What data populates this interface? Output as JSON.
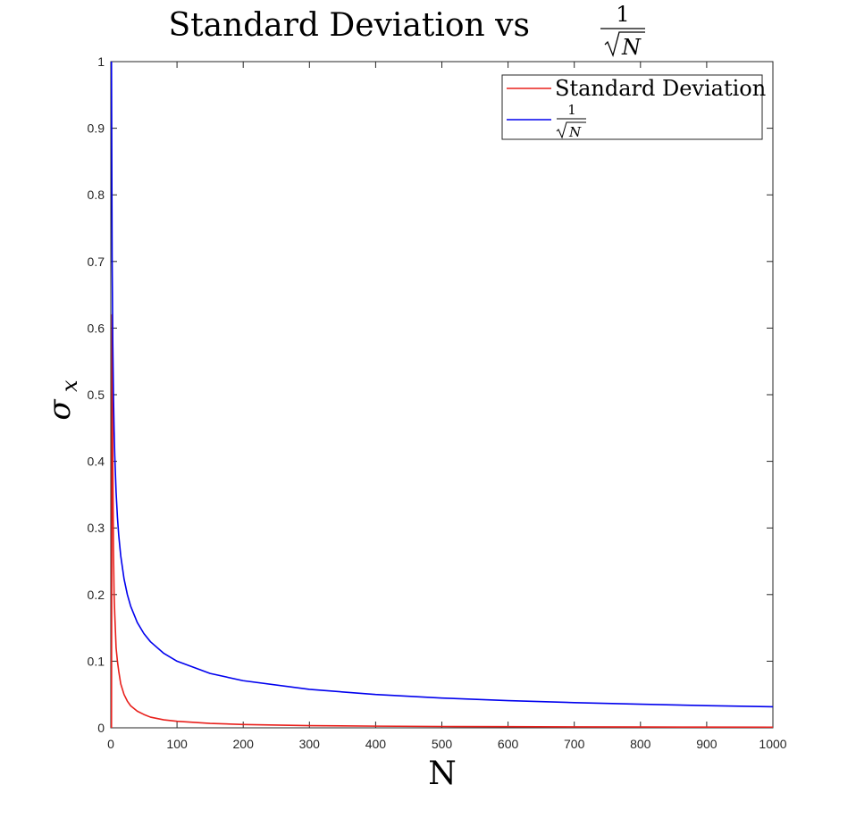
{
  "chart_data": {
    "type": "line",
    "title": {
      "prefix": "Standard Deviation vs",
      "frac_numerator": "1",
      "frac_denominator": "N"
    },
    "xlabel": "N",
    "ylabel": {
      "symbol": "σ",
      "subscript": "x"
    },
    "xlim": [
      0,
      1000
    ],
    "ylim": [
      0,
      1
    ],
    "xticks": [
      0,
      100,
      200,
      300,
      400,
      500,
      600,
      700,
      800,
      900,
      1000
    ],
    "xtick_labels": [
      "0",
      "100",
      "200",
      "300",
      "400",
      "500",
      "600",
      "700",
      "800",
      "900",
      "1000"
    ],
    "yticks": [
      0,
      0.1,
      0.2,
      0.3,
      0.4,
      0.5,
      0.6,
      0.7,
      0.8,
      0.9,
      1
    ],
    "ytick_labels": [
      "0",
      "0.1",
      "0.2",
      "0.3",
      "0.4",
      "0.5",
      "0.6",
      "0.7",
      "0.8",
      "0.9",
      "1"
    ],
    "grid": false,
    "legend_position": "top-right",
    "series": [
      {
        "name": "Standard Deviation",
        "color": "#e8201c",
        "x": [
          1,
          2,
          3,
          4,
          5,
          6,
          8,
          10,
          12,
          15,
          20,
          25,
          30,
          40,
          50,
          60,
          80,
          100,
          150,
          200,
          300,
          400,
          500,
          600,
          700,
          800,
          900,
          1000
        ],
        "y": [
          0,
          0.62,
          0.4,
          0.27,
          0.2,
          0.17,
          0.12,
          0.1,
          0.085,
          0.066,
          0.05,
          0.04,
          0.033,
          0.025,
          0.02,
          0.016,
          0.012,
          0.0098,
          0.0066,
          0.005,
          0.0033,
          0.0025,
          0.002,
          0.0017,
          0.0014,
          0.0012,
          0.0011,
          0.001
        ]
      },
      {
        "name": "1/√N",
        "legend_numerator": "1",
        "legend_denominator": "N",
        "color": "#0000ee",
        "x": [
          1,
          2,
          3,
          4,
          5,
          6,
          8,
          10,
          12,
          15,
          20,
          25,
          30,
          40,
          50,
          60,
          80,
          100,
          150,
          200,
          300,
          400,
          500,
          600,
          700,
          800,
          900,
          1000
        ],
        "y": [
          1,
          0.7071,
          0.5774,
          0.5,
          0.4472,
          0.4082,
          0.3536,
          0.3162,
          0.2887,
          0.2582,
          0.2236,
          0.2,
          0.1826,
          0.1581,
          0.1414,
          0.1291,
          0.1118,
          0.1,
          0.0816,
          0.0707,
          0.0577,
          0.05,
          0.0447,
          0.0408,
          0.0378,
          0.0354,
          0.0333,
          0.0316
        ]
      }
    ]
  }
}
